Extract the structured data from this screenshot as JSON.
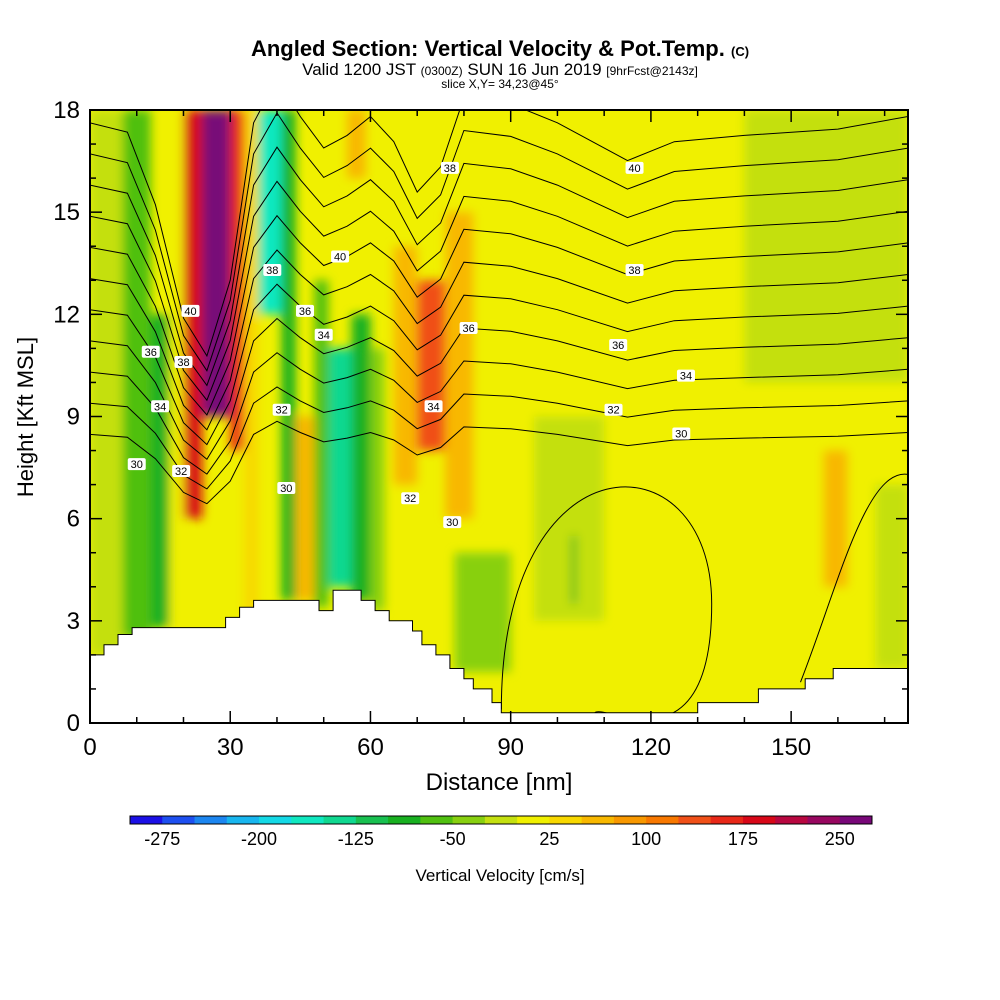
{
  "chart_data": {
    "type": "heatmap",
    "title": {
      "main": "Angled Section: Vertical Velocity & Pot.Temp.",
      "main_suffix": "(C)",
      "line2_a": "Valid 1200 JST",
      "line2_b": "(0300Z)",
      "line2_c": "SUN 16 Jun 2019",
      "line2_d": "[9hrFcst@2143z]",
      "line3": "slice X,Y= 34,23@45°"
    },
    "xlabel": "Distance [nm]",
    "ylabel": "Height [Kft MSL]",
    "xlim": [
      0,
      175
    ],
    "ylim": [
      0,
      18
    ],
    "xticks": [
      0,
      30,
      60,
      90,
      120,
      150
    ],
    "yticks": [
      0,
      3,
      6,
      9,
      12,
      15,
      18
    ],
    "colorbar": {
      "label": "Vertical Velocity [cm/s]",
      "min": -300,
      "max": 275,
      "step": 25,
      "ticks": [
        -275,
        -200,
        -125,
        -50,
        25,
        100,
        175,
        250
      ],
      "colors": [
        "#1b10e6",
        "#1d4ff0",
        "#1c86f0",
        "#18b6ef",
        "#14d9e6",
        "#10e8c0",
        "#10d890",
        "#18c050",
        "#18b020",
        "#50c010",
        "#88d010",
        "#c4e010",
        "#f0f000",
        "#f8d800",
        "#f8b800",
        "#f89800",
        "#f87800",
        "#f05018",
        "#e82818",
        "#d80818",
        "#b80840",
        "#980860",
        "#780878"
      ]
    },
    "velocity_columns": [
      {
        "x": [
          0,
          7
        ],
        "value": -20,
        "ymax": 18,
        "ymin": 2
      },
      {
        "x": [
          7,
          13
        ],
        "value": -60,
        "ymax": 18,
        "ymin": 2.5
      },
      {
        "x": [
          13,
          17
        ],
        "value": -95,
        "ymax": 12,
        "ymin": 2.8
      },
      {
        "x": [
          17,
          20
        ],
        "value": 5,
        "ymax": 18,
        "ymin": 2.6
      },
      {
        "x": [
          20,
          24
        ],
        "value": 175,
        "ymax": 18,
        "ymin": 6
      },
      {
        "x": [
          24,
          30
        ],
        "value": 255,
        "ymax": 18,
        "ymin": 9
      },
      {
        "x": [
          30,
          33
        ],
        "value": 150,
        "ymax": 18,
        "ymin": 8
      },
      {
        "x": [
          33,
          36
        ],
        "value": 35,
        "ymax": 18,
        "ymin": 3
      },
      {
        "x": [
          36,
          41
        ],
        "value": -175,
        "ymax": 18,
        "ymin": 12
      },
      {
        "x": [
          41,
          44
        ],
        "value": -80,
        "ymax": 18,
        "ymin": 3.6
      },
      {
        "x": [
          44,
          48
        ],
        "value": 60,
        "ymax": 9,
        "ymin": 3.6
      },
      {
        "x": [
          48,
          51
        ],
        "value": -70,
        "ymax": 13,
        "ymin": 3.4
      },
      {
        "x": [
          51,
          56
        ],
        "value": -150,
        "ymax": 11,
        "ymin": 4
      },
      {
        "x": [
          56,
          60
        ],
        "value": -90,
        "ymax": 12,
        "ymin": 3.6
      },
      {
        "x": [
          60,
          63
        ],
        "value": -40,
        "ymax": 11,
        "ymin": 3.3
      },
      {
        "x": [
          55,
          59
        ],
        "value": 70,
        "ymax": 18,
        "ymin": 16
      },
      {
        "x": [
          65,
          70
        ],
        "value": 50,
        "ymax": 14,
        "ymin": 7
      },
      {
        "x": [
          70,
          76
        ],
        "value": 130,
        "ymax": 13,
        "ymin": 8
      },
      {
        "x": [
          76,
          82
        ],
        "value": 55,
        "ymax": 15,
        "ymin": 6
      },
      {
        "x": [
          78,
          90
        ],
        "value": -50,
        "ymax": 5,
        "ymin": 1.5
      },
      {
        "x": [
          95,
          110
        ],
        "value": -25,
        "ymax": 9,
        "ymin": 3
      },
      {
        "x": [
          103,
          104
        ],
        "value": -80,
        "ymax": 5.5,
        "ymin": 3.5
      },
      {
        "x": [
          157,
          162
        ],
        "value": 60,
        "ymax": 8,
        "ymin": 4
      },
      {
        "x": [
          140,
          175
        ],
        "value": -10,
        "ymax": 18,
        "ymin": 10
      },
      {
        "x": [
          168,
          175
        ],
        "value": -25,
        "ymax": 7,
        "ymin": 1.6
      }
    ],
    "contour_labels": [
      {
        "text": "40",
        "x": 21.5,
        "y": 12.1
      },
      {
        "text": "38",
        "x": 20,
        "y": 10.6
      },
      {
        "text": "36",
        "x": 13,
        "y": 10.9
      },
      {
        "text": "34",
        "x": 15,
        "y": 9.3
      },
      {
        "text": "32",
        "x": 19.5,
        "y": 7.4
      },
      {
        "text": "30",
        "x": 10,
        "y": 7.6
      },
      {
        "text": "38",
        "x": 39,
        "y": 13.3
      },
      {
        "text": "40",
        "x": 53.5,
        "y": 13.7
      },
      {
        "text": "36",
        "x": 46,
        "y": 12.1
      },
      {
        "text": "34",
        "x": 50,
        "y": 11.4
      },
      {
        "text": "32",
        "x": 41,
        "y": 9.2
      },
      {
        "text": "30",
        "x": 42,
        "y": 6.9
      },
      {
        "text": "38",
        "x": 77,
        "y": 16.3
      },
      {
        "text": "36",
        "x": 81,
        "y": 11.6
      },
      {
        "text": "34",
        "x": 73.5,
        "y": 9.3
      },
      {
        "text": "32",
        "x": 68.5,
        "y": 6.6
      },
      {
        "text": "30",
        "x": 77.5,
        "y": 5.9
      },
      {
        "text": "40",
        "x": 116.5,
        "y": 16.3
      },
      {
        "text": "38",
        "x": 116.5,
        "y": 13.3
      },
      {
        "text": "36",
        "x": 113,
        "y": 11.1
      },
      {
        "text": "34",
        "x": 127.5,
        "y": 10.2
      },
      {
        "text": "32",
        "x": 112,
        "y": 9.2
      },
      {
        "text": "30",
        "x": 126.5,
        "y": 8.5
      }
    ],
    "terrain": [
      [
        0,
        2
      ],
      [
        3,
        2
      ],
      [
        3,
        2.3
      ],
      [
        6,
        2.3
      ],
      [
        6,
        2.6
      ],
      [
        9,
        2.6
      ],
      [
        9,
        2.8
      ],
      [
        29,
        2.8
      ],
      [
        29,
        3.1
      ],
      [
        32,
        3.1
      ],
      [
        32,
        3.4
      ],
      [
        35,
        3.4
      ],
      [
        35,
        3.6
      ],
      [
        49,
        3.6
      ],
      [
        49,
        3.3
      ],
      [
        52,
        3.3
      ],
      [
        52,
        3.9
      ],
      [
        58,
        3.9
      ],
      [
        58,
        3.6
      ],
      [
        61,
        3.6
      ],
      [
        61,
        3.3
      ],
      [
        64,
        3.3
      ],
      [
        64,
        3
      ],
      [
        69,
        3
      ],
      [
        69,
        2.7
      ],
      [
        71,
        2.7
      ],
      [
        71,
        2.3
      ],
      [
        74,
        2.3
      ],
      [
        74,
        2
      ],
      [
        77,
        2
      ],
      [
        77,
        1.6
      ],
      [
        80,
        1.6
      ],
      [
        80,
        1.3
      ],
      [
        82,
        1.3
      ],
      [
        82,
        1
      ],
      [
        86,
        1
      ],
      [
        86,
        0.6
      ],
      [
        88,
        0.6
      ],
      [
        88,
        0.3
      ],
      [
        130,
        0.3
      ],
      [
        130,
        0.6
      ],
      [
        143,
        0.6
      ],
      [
        143,
        1
      ],
      [
        153,
        1
      ],
      [
        153,
        1.3
      ],
      [
        159,
        1.3
      ],
      [
        159,
        1.6
      ],
      [
        175,
        1.6
      ]
    ]
  }
}
